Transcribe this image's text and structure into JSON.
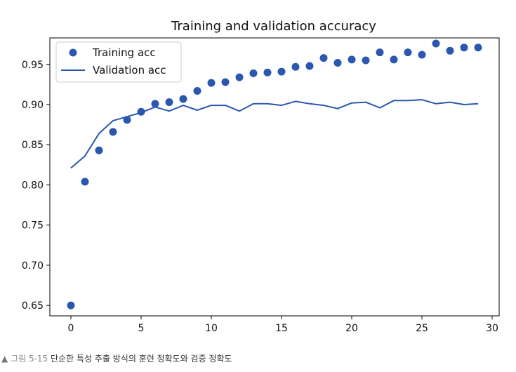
{
  "chart_data": {
    "type": "scatter+line",
    "title": "Training and validation accuracy",
    "xlabel": "",
    "ylabel": "",
    "xlim": [
      -1.5,
      30.5
    ],
    "ylim": [
      0.637,
      0.983
    ],
    "xticks": [
      0,
      5,
      10,
      15,
      20,
      25,
      30
    ],
    "yticks": [
      0.65,
      0.7,
      0.75,
      0.8,
      0.85,
      0.9,
      0.95
    ],
    "xtick_labels": [
      "0",
      "5",
      "10",
      "15",
      "20",
      "25",
      "30"
    ],
    "ytick_labels": [
      "0.65",
      "0.70",
      "0.75",
      "0.80",
      "0.85",
      "0.90",
      "0.95"
    ],
    "legend_position": "top-left",
    "series": [
      {
        "name": "Training acc",
        "style": "dots",
        "color": "#2a57b0",
        "x": [
          0,
          1,
          2,
          3,
          4,
          5,
          6,
          7,
          8,
          9,
          10,
          11,
          12,
          13,
          14,
          15,
          16,
          17,
          18,
          19,
          20,
          21,
          22,
          23,
          24,
          25,
          26,
          27,
          28,
          29
        ],
        "values": [
          0.65,
          0.804,
          0.843,
          0.866,
          0.881,
          0.891,
          0.901,
          0.903,
          0.907,
          0.917,
          0.927,
          0.928,
          0.934,
          0.939,
          0.94,
          0.941,
          0.947,
          0.948,
          0.958,
          0.952,
          0.956,
          0.955,
          0.965,
          0.956,
          0.965,
          0.962,
          0.976,
          0.967,
          0.971,
          0.971
        ]
      },
      {
        "name": "Validation acc",
        "style": "line",
        "color": "#2a57b0",
        "x": [
          0,
          1,
          2,
          3,
          4,
          5,
          6,
          7,
          8,
          9,
          10,
          11,
          12,
          13,
          14,
          15,
          16,
          17,
          18,
          19,
          20,
          21,
          22,
          23,
          24,
          25,
          26,
          27,
          28,
          29
        ],
        "values": [
          0.821,
          0.836,
          0.864,
          0.88,
          0.885,
          0.89,
          0.897,
          0.892,
          0.899,
          0.893,
          0.899,
          0.899,
          0.892,
          0.901,
          0.901,
          0.899,
          0.904,
          0.901,
          0.899,
          0.895,
          0.902,
          0.903,
          0.896,
          0.905,
          0.905,
          0.906,
          0.901,
          0.903,
          0.9,
          0.901
        ]
      }
    ]
  },
  "caption": {
    "marker": "▲",
    "figure": "그림 5-15",
    "text": "단순한 특성 추출 방식의 훈련 정확도와 검증 정확도"
  }
}
